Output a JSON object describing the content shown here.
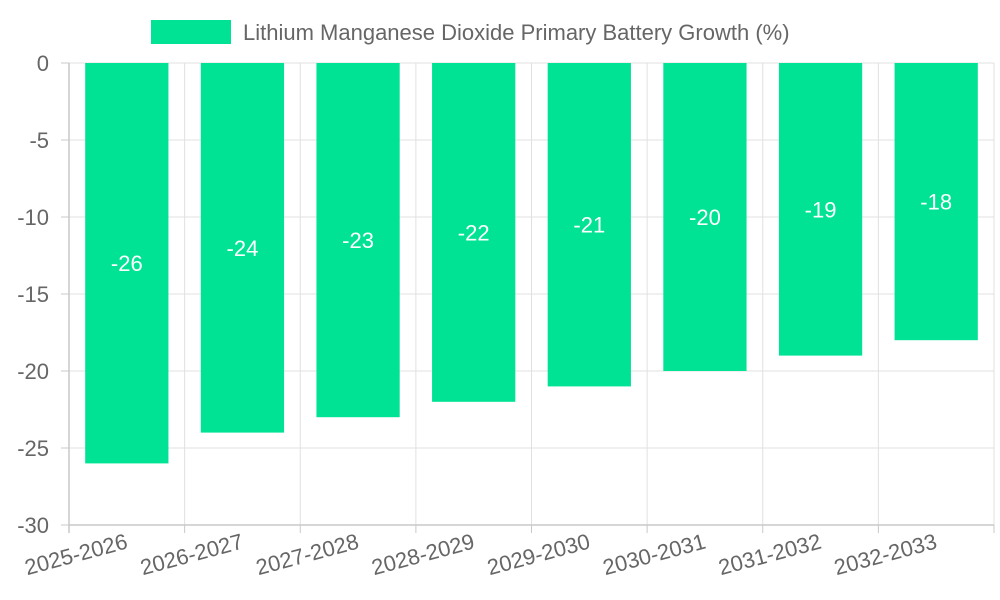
{
  "chart_data": {
    "type": "bar",
    "categories": [
      "2025-2026",
      "2026-2027",
      "2027-2028",
      "2028-2029",
      "2029-2030",
      "2030-2031",
      "2031-2032",
      "2032-2033"
    ],
    "series": [
      {
        "name": "Lithium Manganese Dioxide Primary Battery Growth (%)",
        "values": [
          -26,
          -24,
          -23,
          -22,
          -21,
          -20,
          -19,
          -18
        ]
      }
    ],
    "ylim": [
      -30,
      0
    ],
    "yticks": [
      0,
      -5,
      -10,
      -15,
      -20,
      -25,
      -30
    ],
    "grid": true,
    "legend": "top-center",
    "data_labels": true,
    "colors": {
      "bar": "#00e394",
      "grid": "#e0e0e0",
      "axis": "#c8c8c8",
      "text": "#666666",
      "label": "#ffffff"
    }
  }
}
